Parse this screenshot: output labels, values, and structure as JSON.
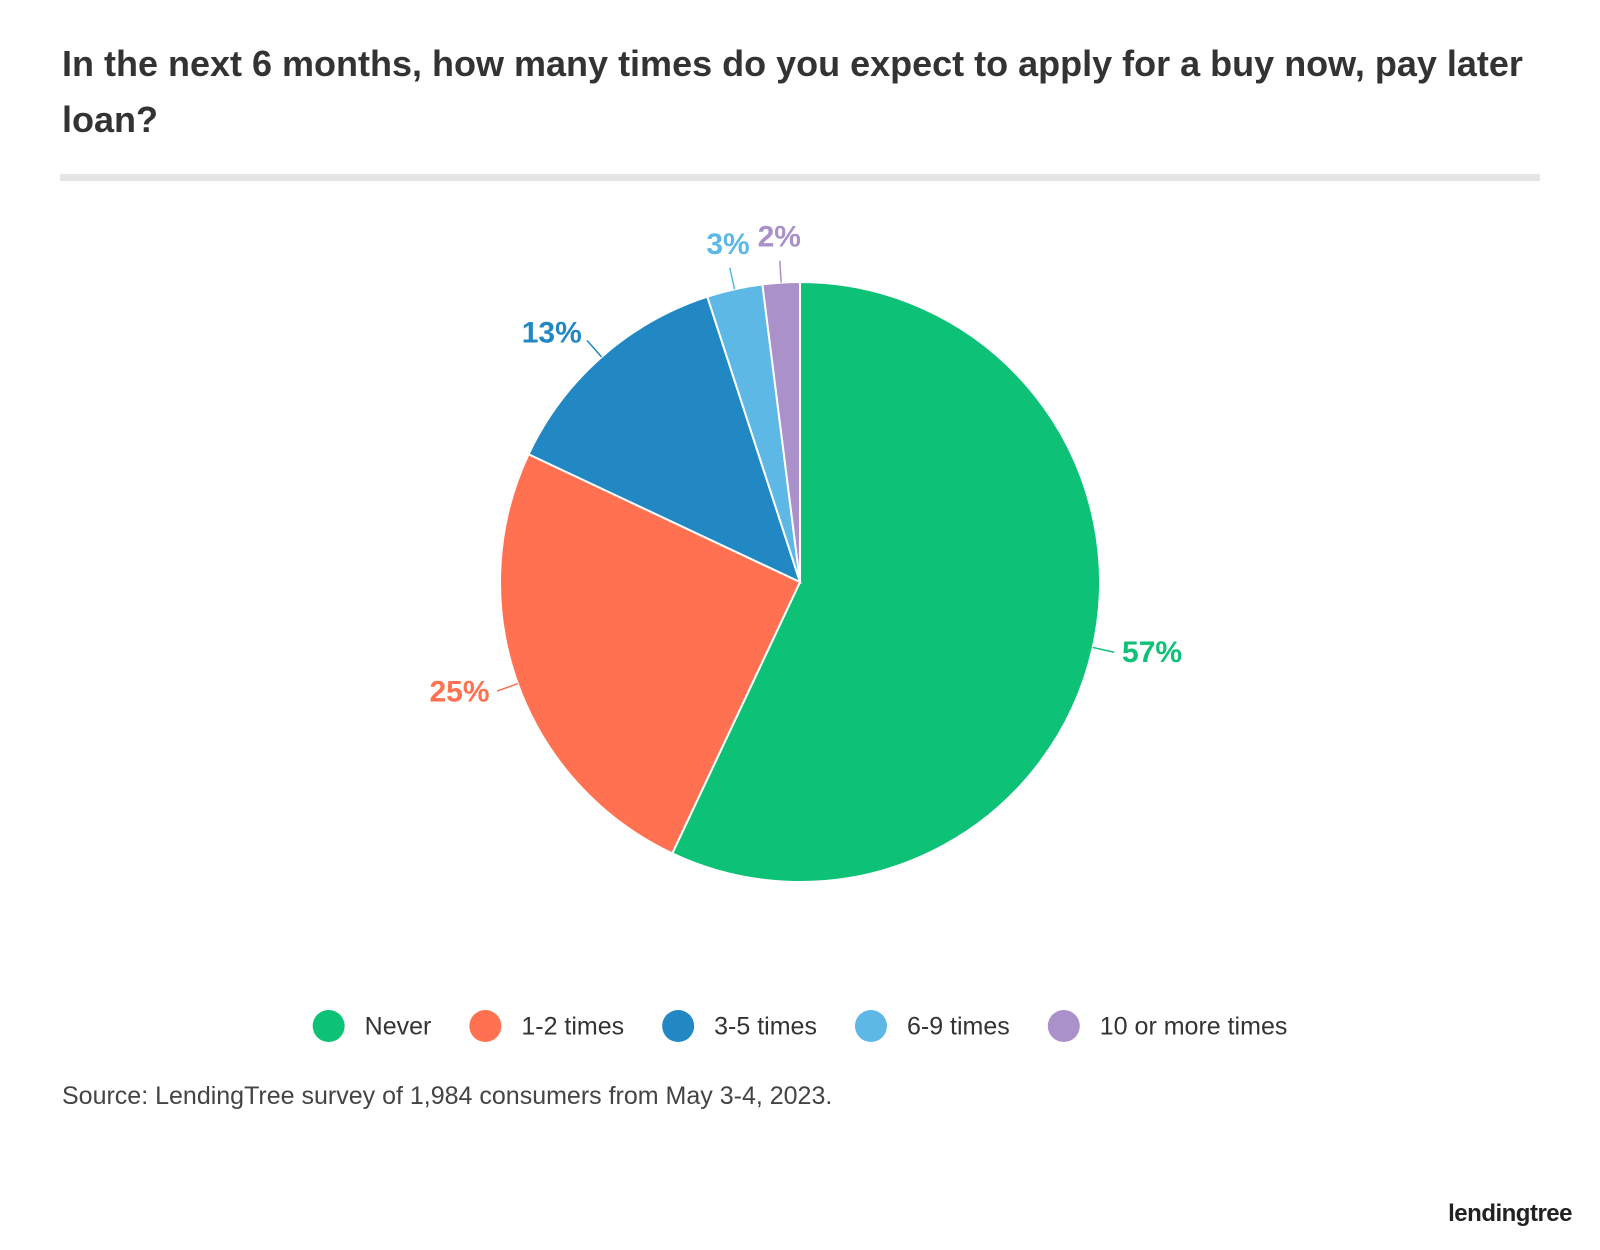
{
  "chart_data": {
    "type": "pie",
    "title": "In the next 6 months, how many times do you expect to apply for a buy now, pay later loan?",
    "categories": [
      "Never",
      "1-2 times",
      "3-5 times",
      "6-9 times",
      "10 or more times"
    ],
    "values": [
      57,
      25,
      13,
      3,
      2
    ],
    "value_labels": [
      "57%",
      "25%",
      "13%",
      "3%",
      "2%"
    ],
    "colors": [
      "#0dc177",
      "#ff7150",
      "#2188c3",
      "#5db8e5",
      "#ab91c9"
    ],
    "source": "Source: LendingTree survey of 1,984 consumers from May 3-4, 2023.",
    "logo": "lendingtree"
  }
}
